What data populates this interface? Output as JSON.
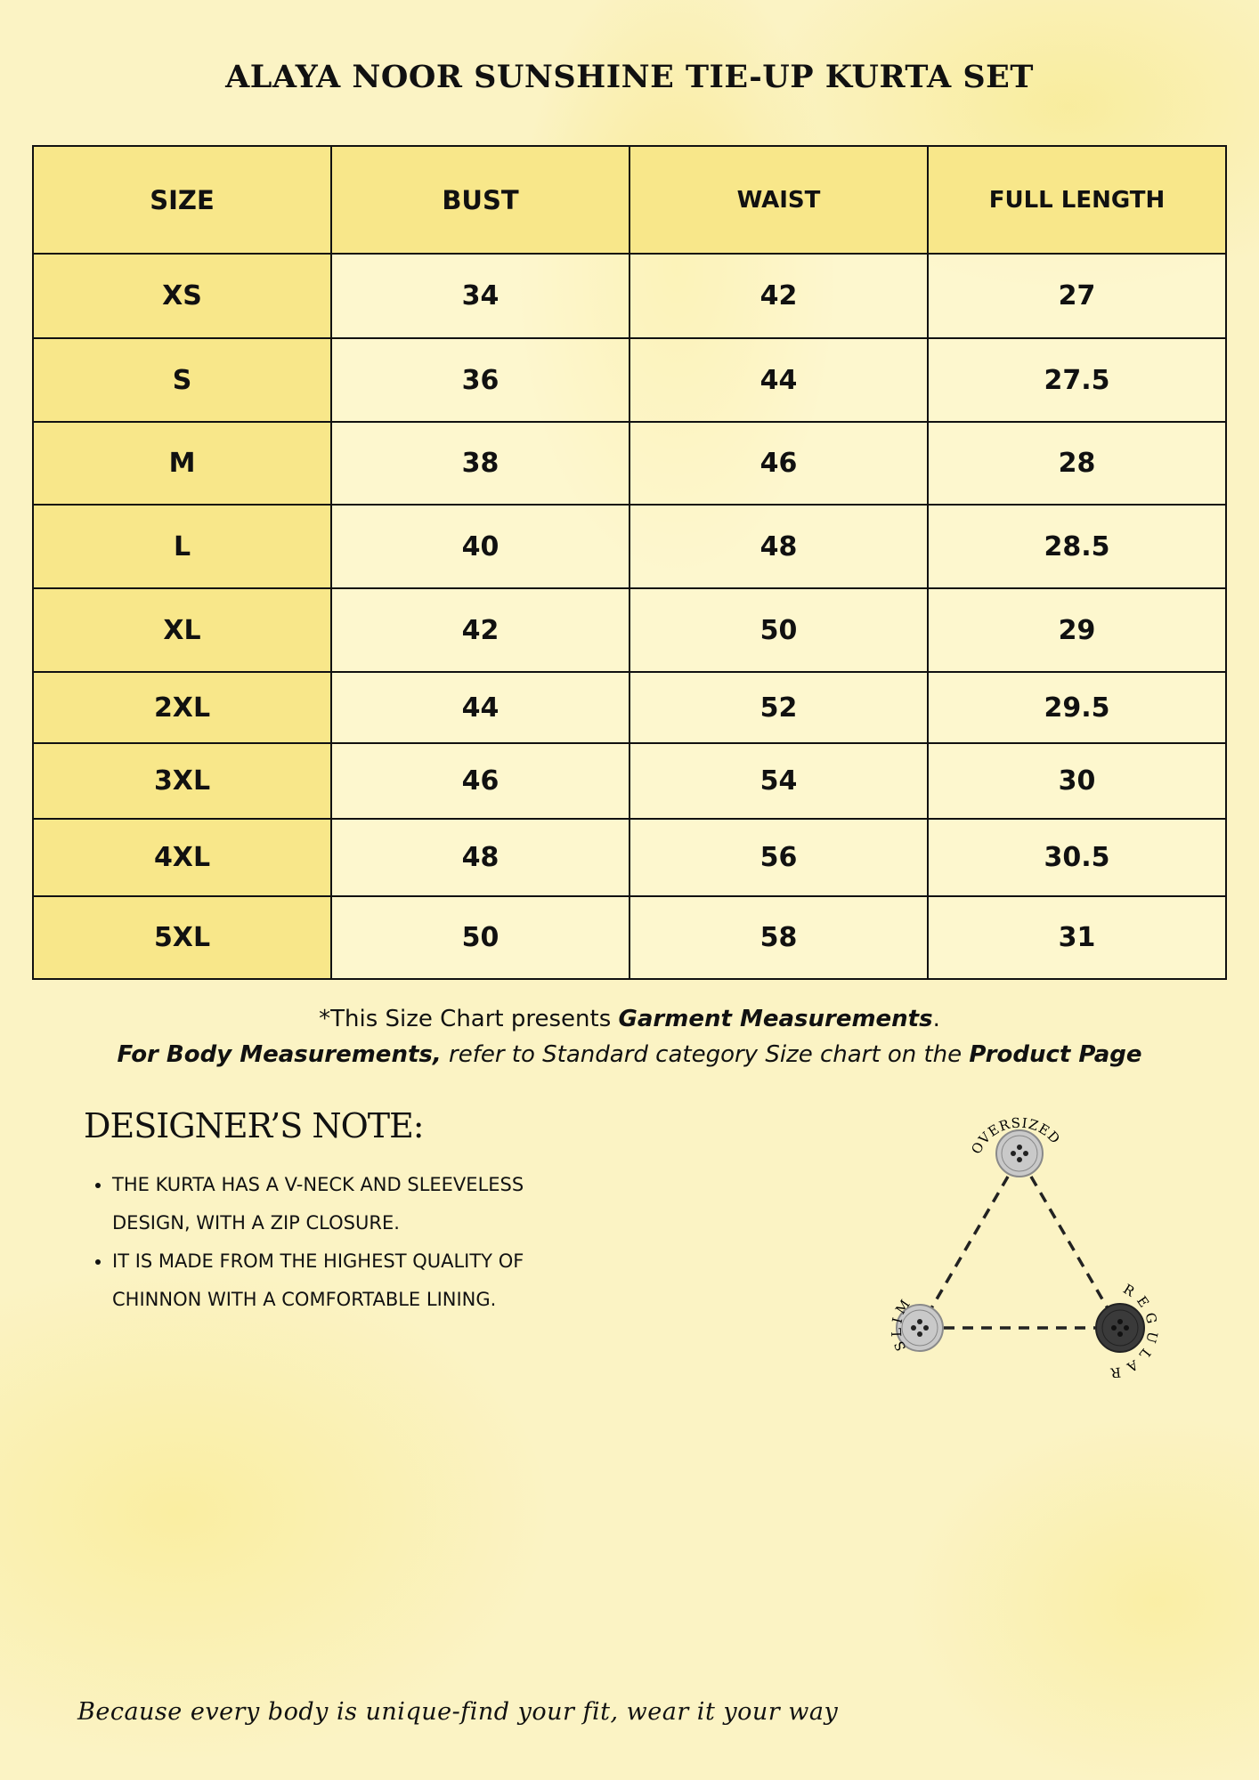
{
  "title": "ALAYA NOOR SUNSHINE TIE-UP KURTA SET",
  "table": {
    "headers": [
      "SIZE",
      "BUST",
      "WAIST",
      "FULL LENGTH"
    ],
    "rows": [
      [
        "XS",
        "34",
        "42",
        "27"
      ],
      [
        "S",
        "36",
        "44",
        "27.5"
      ],
      [
        "M",
        "38",
        "46",
        "28"
      ],
      [
        "L",
        "40",
        "48",
        "28.5"
      ],
      [
        "XL",
        "42",
        "50",
        "29"
      ],
      [
        "2XL",
        "44",
        "52",
        "29.5"
      ],
      [
        "3XL",
        "46",
        "54",
        "30"
      ],
      [
        "4XL",
        "48",
        "56",
        "30.5"
      ],
      [
        "5XL",
        "50",
        "58",
        "31"
      ]
    ]
  },
  "note": {
    "line1_prefix": "*This Size Chart presents ",
    "line1_bold": "Garment Measurements",
    "line1_suffix": ".",
    "line2_bold": "For Body Measurements,",
    "line2_mid": " refer to Standard category Size chart on the ",
    "line2_bold2": "Product Page"
  },
  "designers_note": {
    "heading": "DESIGNER’S NOTE:",
    "bullets": [
      "THE KURTA HAS A V-NECK AND SLEEVELESS DESIGN, WITH A ZIP CLOSURE.",
      "IT IS MADE FROM THE HIGHEST QUALITY OF CHINNON WITH A COMFORTABLE LINING."
    ]
  },
  "fit_diagram": {
    "top": "OVERSIZED",
    "left": "SLIM",
    "right": "REGULAR",
    "highlighted": "REGULAR"
  },
  "tagline": "Because every body is unique-find your fit, wear it your way",
  "colors": {
    "header_fill": "#f8e78a",
    "background": "#fbf3c4",
    "selected_button": "#3a3a3a",
    "button": "#c9c9c9"
  }
}
